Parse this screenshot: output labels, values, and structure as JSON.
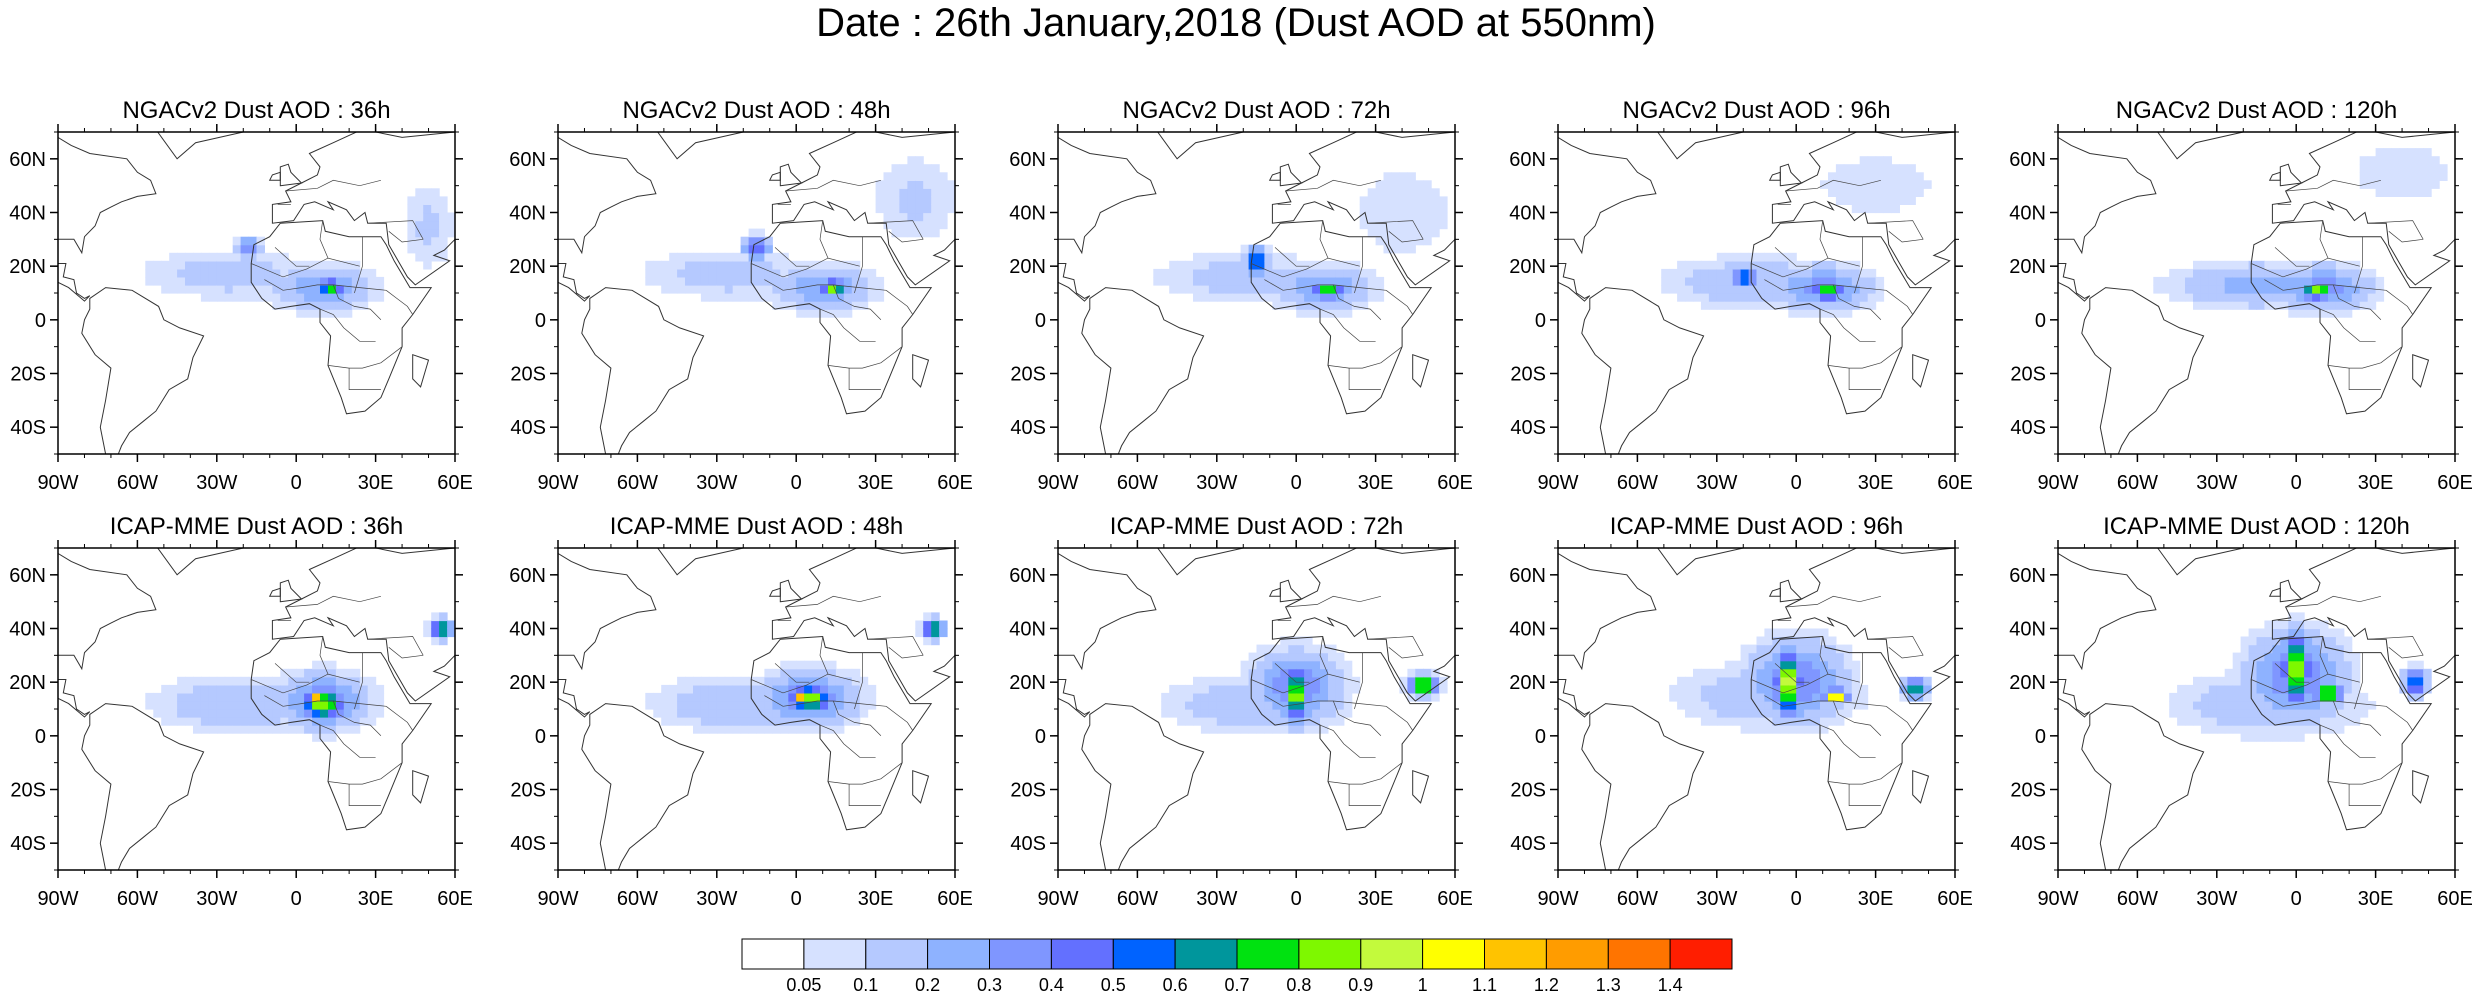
{
  "title": "Date : 26th January,2018 (Dust AOD at 550nm)",
  "rows": [
    {
      "model": "NGACv2",
      "panels": [
        {
          "title": "NGACv2 Dust AOD : 36h"
        },
        {
          "title": "NGACv2 Dust AOD : 48h"
        },
        {
          "title": "NGACv2 Dust AOD : 72h"
        },
        {
          "title": "NGACv2 Dust AOD : 96h"
        },
        {
          "title": "NGACv2 Dust AOD : 120h"
        }
      ]
    },
    {
      "model": "ICAP-MME",
      "panels": [
        {
          "title": "ICAP-MME Dust AOD : 36h"
        },
        {
          "title": "ICAP-MME Dust AOD : 48h"
        },
        {
          "title": "ICAP-MME Dust AOD : 72h"
        },
        {
          "title": "ICAP-MME Dust AOD : 96h"
        },
        {
          "title": "ICAP-MME Dust AOD : 120h"
        }
      ]
    }
  ],
  "map_extent": {
    "lon_min": -90,
    "lon_max": 60,
    "lat_min": -50,
    "lat_max": 70
  },
  "x_ticks": [
    {
      "lon": -90,
      "label": "90W"
    },
    {
      "lon": -60,
      "label": "60W"
    },
    {
      "lon": -30,
      "label": "30W"
    },
    {
      "lon": 0,
      "label": "0"
    },
    {
      "lon": 30,
      "label": "30E"
    },
    {
      "lon": 60,
      "label": "60E"
    }
  ],
  "y_ticks": [
    {
      "lat": 60,
      "label": "60N"
    },
    {
      "lat": 40,
      "label": "40N"
    },
    {
      "lat": 20,
      "label": "20N"
    },
    {
      "lat": 0,
      "label": "0"
    },
    {
      "lat": -20,
      "label": "20S"
    },
    {
      "lat": -40,
      "label": "40S"
    }
  ],
  "colorbar": {
    "colors": [
      "#ffffff",
      "#d6e1ff",
      "#b5c9ff",
      "#8eb2ff",
      "#7f96ff",
      "#6370ff",
      "#0063ff",
      "#00969c",
      "#00e210",
      "#7ef800",
      "#c3fa3c",
      "#ffff00",
      "#ffc300",
      "#ff9c00",
      "#ff7400",
      "#ff1e00"
    ],
    "labels": [
      "0.05",
      "0.1",
      "0.2",
      "0.3",
      "0.4",
      "0.5",
      "0.6",
      "0.7",
      "0.8",
      "0.9",
      "1",
      "1.1",
      "1.2",
      "1.3",
      "1.4"
    ]
  },
  "chart_data": {
    "type": "heatmap",
    "variable": "Dust AOD at 550nm",
    "date": "26th January,2018",
    "units": "AOD",
    "levels": [
      0.05,
      0.1,
      0.2,
      0.3,
      0.4,
      0.5,
      0.6,
      0.7,
      0.8,
      0.9,
      1,
      1.1,
      1.2,
      1.3,
      1.4
    ],
    "plume_fields": {
      "NGACv2": {
        "36h": [
          {
            "lon": -25,
            "lat": 17,
            "rlon": 40,
            "rlat": 11,
            "aod": 0.15
          },
          {
            "lon": 10,
            "lat": 12,
            "rlon": 22,
            "rlat": 10,
            "aod": 0.3
          },
          {
            "lon": 13,
            "lat": 12,
            "rlon": 6,
            "rlat": 4,
            "aod": 0.8
          },
          {
            "lon": -18,
            "lat": 27,
            "rlon": 6,
            "rlat": 4,
            "aod": 0.45
          },
          {
            "lon": 50,
            "lat": 35,
            "rlon": 12,
            "rlat": 20,
            "aod": 0.12
          }
        ],
        "48h": [
          {
            "lon": -25,
            "lat": 17,
            "rlon": 40,
            "rlat": 11,
            "aod": 0.15
          },
          {
            "lon": 10,
            "lat": 12,
            "rlon": 22,
            "rlat": 10,
            "aod": 0.3
          },
          {
            "lon": 14,
            "lat": 12,
            "rlon": 6,
            "rlat": 4,
            "aod": 0.85
          },
          {
            "lon": -15,
            "lat": 27,
            "rlon": 6,
            "rlat": 5,
            "aod": 0.5
          },
          {
            "lon": 45,
            "lat": 45,
            "rlon": 20,
            "rlat": 20,
            "aod": 0.12
          }
        ],
        "72h": [
          {
            "lon": -20,
            "lat": 16,
            "rlon": 40,
            "rlat": 11,
            "aod": 0.15
          },
          {
            "lon": 10,
            "lat": 12,
            "rlon": 22,
            "rlat": 10,
            "aod": 0.3
          },
          {
            "lon": 12,
            "lat": 11,
            "rlon": 7,
            "rlat": 4,
            "aod": 0.8
          },
          {
            "lon": -15,
            "lat": 22,
            "rlon": 5,
            "rlat": 6,
            "aod": 0.7
          },
          {
            "lon": 40,
            "lat": 40,
            "rlon": 25,
            "rlat": 22,
            "aod": 0.1
          }
        ],
        "96h": [
          {
            "lon": -15,
            "lat": 14,
            "rlon": 40,
            "rlat": 11,
            "aod": 0.2
          },
          {
            "lon": 10,
            "lat": 12,
            "rlon": 22,
            "rlat": 10,
            "aod": 0.35
          },
          {
            "lon": 12,
            "lat": 11,
            "rlon": 7,
            "rlat": 4,
            "aod": 0.85
          },
          {
            "lon": -20,
            "lat": 16,
            "rlon": 6,
            "rlat": 4,
            "aod": 0.65
          },
          {
            "lon": 30,
            "lat": 50,
            "rlon": 30,
            "rlat": 15,
            "aod": 0.1
          }
        ],
        "120h": [
          {
            "lon": -15,
            "lat": 13,
            "rlon": 38,
            "rlat": 10,
            "aod": 0.25
          },
          {
            "lon": 10,
            "lat": 12,
            "rlon": 22,
            "rlat": 10,
            "aod": 0.35
          },
          {
            "lon": 8,
            "lat": 11,
            "rlon": 8,
            "rlat": 4,
            "aod": 0.85
          },
          {
            "lon": 40,
            "lat": 55,
            "rlon": 25,
            "rlat": 15,
            "aod": 0.1
          }
        ]
      },
      "ICAP-MME": {
        "36h": [
          {
            "lon": -20,
            "lat": 12,
            "rlon": 40,
            "rlat": 12,
            "aod": 0.2
          },
          {
            "lon": 10,
            "lat": 13,
            "rlon": 20,
            "rlat": 12,
            "aod": 0.4
          },
          {
            "lon": 10,
            "lat": 12,
            "rlon": 10,
            "rlat": 7,
            "aod": 0.9
          },
          {
            "lon": 8,
            "lat": 14,
            "rlon": 3,
            "rlat": 2,
            "aod": 1.3
          },
          {
            "lon": 55,
            "lat": 40,
            "rlon": 5,
            "rlat": 4,
            "aod": 0.8
          }
        ],
        "48h": [
          {
            "lon": -20,
            "lat": 12,
            "rlon": 40,
            "rlat": 12,
            "aod": 0.2
          },
          {
            "lon": 5,
            "lat": 14,
            "rlon": 22,
            "rlat": 12,
            "aod": 0.4
          },
          {
            "lon": 5,
            "lat": 14,
            "rlon": 10,
            "rlat": 6,
            "aod": 0.9
          },
          {
            "lon": 2,
            "lat": 15,
            "rlon": 3,
            "rlat": 2,
            "aod": 1.3
          },
          {
            "lon": 52,
            "lat": 40,
            "rlon": 5,
            "rlat": 4,
            "aod": 0.8
          }
        ],
        "72h": [
          {
            "lon": -15,
            "lat": 12,
            "rlon": 40,
            "rlat": 12,
            "aod": 0.2
          },
          {
            "lon": 0,
            "lat": 18,
            "rlon": 20,
            "rlat": 16,
            "aod": 0.4
          },
          {
            "lon": 0,
            "lat": 16,
            "rlon": 6,
            "rlat": 12,
            "aod": 0.9
          },
          {
            "lon": 0,
            "lat": 14,
            "rlon": 3,
            "rlat": 4,
            "aod": 1.3
          },
          {
            "lon": 48,
            "lat": 19,
            "rlon": 6,
            "rlat": 4,
            "aod": 1.1
          }
        ],
        "96h": [
          {
            "lon": -10,
            "lat": 15,
            "rlon": 40,
            "rlat": 14,
            "aod": 0.2
          },
          {
            "lon": 0,
            "lat": 20,
            "rlon": 22,
            "rlat": 18,
            "aod": 0.4
          },
          {
            "lon": -3,
            "lat": 20,
            "rlon": 6,
            "rlat": 14,
            "aod": 1.0
          },
          {
            "lon": 15,
            "lat": 15,
            "rlon": 5,
            "rlat": 3,
            "aod": 1.3
          },
          {
            "lon": 45,
            "lat": 18,
            "rlon": 5,
            "rlat": 4,
            "aod": 0.8
          }
        ],
        "120h": [
          {
            "lon": -10,
            "lat": 12,
            "rlon": 42,
            "rlat": 14,
            "aod": 0.2
          },
          {
            "lon": 0,
            "lat": 22,
            "rlon": 22,
            "rlat": 20,
            "aod": 0.4
          },
          {
            "lon": 0,
            "lat": 25,
            "rlon": 6,
            "rlat": 16,
            "aod": 1.0
          },
          {
            "lon": 12,
            "lat": 16,
            "rlon": 6,
            "rlat": 3,
            "aod": 1.3
          },
          {
            "lon": 45,
            "lat": 20,
            "rlon": 5,
            "rlat": 6,
            "aod": 0.7
          }
        ]
      }
    }
  }
}
